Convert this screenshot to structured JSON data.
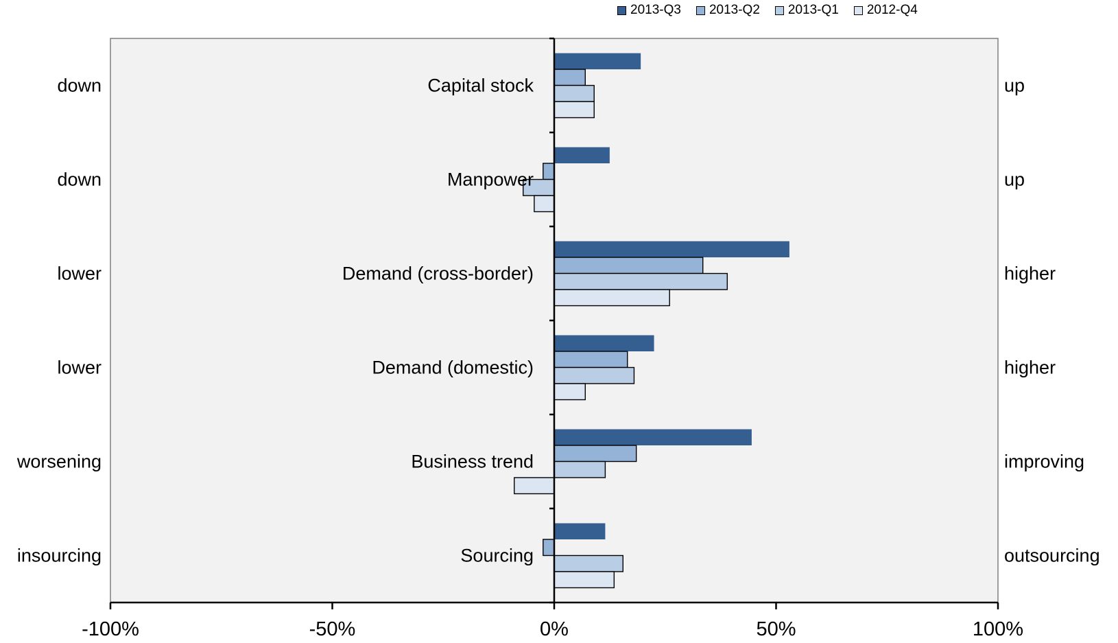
{
  "chart_data": {
    "type": "bar",
    "orientation": "horizontal",
    "categories": [
      "Capital stock",
      "Manpower",
      "Demand (cross-border)",
      "Demand (domestic)",
      "Business trend",
      "Sourcing"
    ],
    "left_labels": [
      "down",
      "down",
      "lower",
      "lower",
      "worsening",
      "insourcing"
    ],
    "right_labels": [
      "up",
      "up",
      "higher",
      "higher",
      "improving",
      "outsourcing"
    ],
    "series": [
      {
        "name": "2013-Q3",
        "color": "#355f91",
        "values": [
          19.5,
          12.5,
          53,
          22.5,
          44.5,
          11.5
        ]
      },
      {
        "name": "2013-Q2",
        "color": "#95b3d7",
        "values": [
          7,
          -2.5,
          33.5,
          16.5,
          18.5,
          -2.5
        ]
      },
      {
        "name": "2013-Q1",
        "color": "#b9cde5",
        "values": [
          9,
          -7,
          39,
          18,
          11.5,
          15.5
        ]
      },
      {
        "name": "2012-Q4",
        "color": "#dce6f2",
        "values": [
          9,
          -4.5,
          26,
          7,
          -9,
          13.5
        ]
      }
    ],
    "xlim": [
      -100,
      100
    ],
    "xticks": [
      "-100%",
      "-50%",
      "0%",
      "50%",
      "100%"
    ],
    "xtick_values": [
      -100,
      -50,
      0,
      50,
      100
    ],
    "legend_position": "top-right",
    "grid": false,
    "plot_background": "#f2f2f2"
  }
}
